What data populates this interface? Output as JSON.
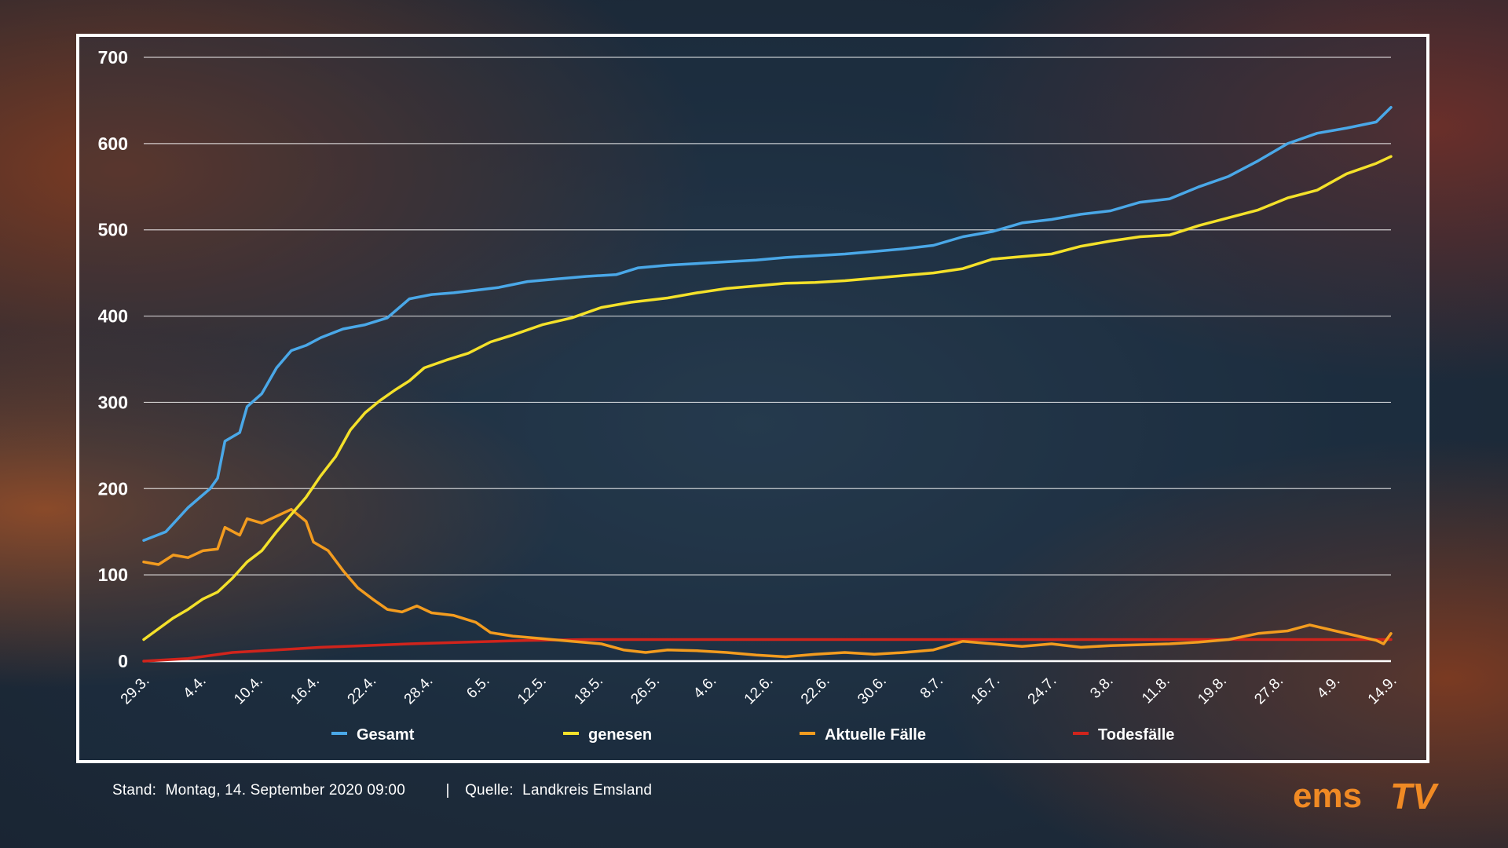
{
  "chart_data": {
    "type": "line",
    "ylim": [
      0,
      700
    ],
    "yticks": [
      0,
      100,
      200,
      300,
      400,
      500,
      600,
      700
    ],
    "x_tick_labels": [
      "29.3.",
      "4.4.",
      "10.4.",
      "16.4.",
      "22.4.",
      "28.4.",
      "6.5.",
      "12.5.",
      "18.5.",
      "26.5.",
      "4.6.",
      "12.6.",
      "22.6.",
      "30.6.",
      "8.7.",
      "16.7.",
      "24.7.",
      "3.8.",
      "11.8.",
      "19.8.",
      "27.8.",
      "4.9.",
      "14.9."
    ],
    "x_start": "2020-03-29",
    "x_end": "2020-09-14",
    "grid": true,
    "legend_position": "bottom",
    "series": [
      {
        "name": "Gesamt",
        "color": "#4aa8e8",
        "points": [
          [
            "2020-03-29",
            140
          ],
          [
            "2020-04-01",
            150
          ],
          [
            "2020-04-04",
            178
          ],
          [
            "2020-04-07",
            200
          ],
          [
            "2020-04-08",
            212
          ],
          [
            "2020-04-09",
            255
          ],
          [
            "2020-04-11",
            265
          ],
          [
            "2020-04-12",
            295
          ],
          [
            "2020-04-14",
            310
          ],
          [
            "2020-04-16",
            340
          ],
          [
            "2020-04-18",
            360
          ],
          [
            "2020-04-20",
            366
          ],
          [
            "2020-04-22",
            375
          ],
          [
            "2020-04-25",
            385
          ],
          [
            "2020-04-28",
            390
          ],
          [
            "2020-05-01",
            398
          ],
          [
            "2020-05-04",
            420
          ],
          [
            "2020-05-07",
            425
          ],
          [
            "2020-05-10",
            427
          ],
          [
            "2020-05-13",
            430
          ],
          [
            "2020-05-16",
            433
          ],
          [
            "2020-05-20",
            440
          ],
          [
            "2020-05-24",
            443
          ],
          [
            "2020-05-28",
            446
          ],
          [
            "2020-06-01",
            448
          ],
          [
            "2020-06-04",
            456
          ],
          [
            "2020-06-08",
            459
          ],
          [
            "2020-06-12",
            461
          ],
          [
            "2020-06-16",
            463
          ],
          [
            "2020-06-20",
            465
          ],
          [
            "2020-06-24",
            468
          ],
          [
            "2020-06-28",
            470
          ],
          [
            "2020-07-02",
            472
          ],
          [
            "2020-07-06",
            475
          ],
          [
            "2020-07-10",
            478
          ],
          [
            "2020-07-14",
            482
          ],
          [
            "2020-07-18",
            492
          ],
          [
            "2020-07-22",
            498
          ],
          [
            "2020-07-26",
            508
          ],
          [
            "2020-07-30",
            512
          ],
          [
            "2020-08-03",
            518
          ],
          [
            "2020-08-07",
            522
          ],
          [
            "2020-08-11",
            532
          ],
          [
            "2020-08-15",
            536
          ],
          [
            "2020-08-19",
            550
          ],
          [
            "2020-08-23",
            562
          ],
          [
            "2020-08-27",
            580
          ],
          [
            "2020-08-31",
            600
          ],
          [
            "2020-09-04",
            612
          ],
          [
            "2020-09-08",
            618
          ],
          [
            "2020-09-12",
            625
          ],
          [
            "2020-09-14",
            642
          ]
        ]
      },
      {
        "name": "genesen",
        "color": "#f4e12a",
        "points": [
          [
            "2020-03-29",
            25
          ],
          [
            "2020-04-02",
            50
          ],
          [
            "2020-04-04",
            60
          ],
          [
            "2020-04-06",
            72
          ],
          [
            "2020-04-08",
            80
          ],
          [
            "2020-04-10",
            96
          ],
          [
            "2020-04-12",
            115
          ],
          [
            "2020-04-14",
            128
          ],
          [
            "2020-04-16",
            150
          ],
          [
            "2020-04-18",
            170
          ],
          [
            "2020-04-20",
            190
          ],
          [
            "2020-04-22",
            215
          ],
          [
            "2020-04-24",
            237
          ],
          [
            "2020-04-26",
            268
          ],
          [
            "2020-04-28",
            288
          ],
          [
            "2020-04-30",
            302
          ],
          [
            "2020-05-02",
            314
          ],
          [
            "2020-05-04",
            325
          ],
          [
            "2020-05-06",
            340
          ],
          [
            "2020-05-09",
            349
          ],
          [
            "2020-05-12",
            357
          ],
          [
            "2020-05-15",
            370
          ],
          [
            "2020-05-18",
            378
          ],
          [
            "2020-05-22",
            390
          ],
          [
            "2020-05-26",
            398
          ],
          [
            "2020-05-30",
            410
          ],
          [
            "2020-06-03",
            416
          ],
          [
            "2020-06-08",
            421
          ],
          [
            "2020-06-12",
            427
          ],
          [
            "2020-06-16",
            432
          ],
          [
            "2020-06-20",
            435
          ],
          [
            "2020-06-24",
            438
          ],
          [
            "2020-06-28",
            439
          ],
          [
            "2020-07-02",
            441
          ],
          [
            "2020-07-06",
            444
          ],
          [
            "2020-07-10",
            447
          ],
          [
            "2020-07-14",
            450
          ],
          [
            "2020-07-18",
            455
          ],
          [
            "2020-07-22",
            466
          ],
          [
            "2020-07-26",
            469
          ],
          [
            "2020-07-30",
            472
          ],
          [
            "2020-08-03",
            481
          ],
          [
            "2020-08-07",
            487
          ],
          [
            "2020-08-11",
            492
          ],
          [
            "2020-08-15",
            494
          ],
          [
            "2020-08-19",
            505
          ],
          [
            "2020-08-23",
            514
          ],
          [
            "2020-08-27",
            523
          ],
          [
            "2020-08-31",
            537
          ],
          [
            "2020-09-04",
            546
          ],
          [
            "2020-09-08",
            565
          ],
          [
            "2020-09-12",
            577
          ],
          [
            "2020-09-14",
            585
          ]
        ]
      },
      {
        "name": "Aktuelle Fälle",
        "color": "#f39c1f",
        "points": [
          [
            "2020-03-29",
            115
          ],
          [
            "2020-03-31",
            112
          ],
          [
            "2020-04-02",
            123
          ],
          [
            "2020-04-04",
            120
          ],
          [
            "2020-04-06",
            128
          ],
          [
            "2020-04-08",
            130
          ],
          [
            "2020-04-09",
            155
          ],
          [
            "2020-04-11",
            146
          ],
          [
            "2020-04-12",
            165
          ],
          [
            "2020-04-14",
            160
          ],
          [
            "2020-04-16",
            168
          ],
          [
            "2020-04-18",
            176
          ],
          [
            "2020-04-20",
            162
          ],
          [
            "2020-04-21",
            138
          ],
          [
            "2020-04-23",
            128
          ],
          [
            "2020-04-25",
            105
          ],
          [
            "2020-04-27",
            85
          ],
          [
            "2020-04-29",
            72
          ],
          [
            "2020-05-01",
            60
          ],
          [
            "2020-05-03",
            57
          ],
          [
            "2020-05-05",
            64
          ],
          [
            "2020-05-07",
            56
          ],
          [
            "2020-05-10",
            53
          ],
          [
            "2020-05-13",
            45
          ],
          [
            "2020-05-15",
            33
          ],
          [
            "2020-05-18",
            29
          ],
          [
            "2020-05-22",
            26
          ],
          [
            "2020-05-26",
            23
          ],
          [
            "2020-05-30",
            20
          ],
          [
            "2020-06-02",
            13
          ],
          [
            "2020-06-05",
            10
          ],
          [
            "2020-06-08",
            13
          ],
          [
            "2020-06-12",
            12
          ],
          [
            "2020-06-16",
            10
          ],
          [
            "2020-06-20",
            7
          ],
          [
            "2020-06-24",
            5
          ],
          [
            "2020-06-28",
            8
          ],
          [
            "2020-07-02",
            10
          ],
          [
            "2020-07-06",
            8
          ],
          [
            "2020-07-10",
            10
          ],
          [
            "2020-07-14",
            13
          ],
          [
            "2020-07-18",
            23
          ],
          [
            "2020-07-22",
            20
          ],
          [
            "2020-07-26",
            17
          ],
          [
            "2020-07-30",
            20
          ],
          [
            "2020-08-03",
            16
          ],
          [
            "2020-08-07",
            18
          ],
          [
            "2020-08-11",
            19
          ],
          [
            "2020-08-15",
            20
          ],
          [
            "2020-08-19",
            22
          ],
          [
            "2020-08-23",
            25
          ],
          [
            "2020-08-27",
            32
          ],
          [
            "2020-08-31",
            35
          ],
          [
            "2020-09-03",
            42
          ],
          [
            "2020-09-06",
            36
          ],
          [
            "2020-09-09",
            30
          ],
          [
            "2020-09-12",
            24
          ],
          [
            "2020-09-13",
            20
          ],
          [
            "2020-09-14",
            32
          ]
        ]
      },
      {
        "name": "Todesfälle",
        "color": "#d0241c",
        "points": [
          [
            "2020-03-29",
            0
          ],
          [
            "2020-04-04",
            3
          ],
          [
            "2020-04-10",
            10
          ],
          [
            "2020-04-16",
            13
          ],
          [
            "2020-04-22",
            16
          ],
          [
            "2020-04-28",
            18
          ],
          [
            "2020-05-04",
            20
          ],
          [
            "2020-05-12",
            22
          ],
          [
            "2020-05-20",
            24
          ],
          [
            "2020-05-28",
            25
          ],
          [
            "2020-06-05",
            25
          ],
          [
            "2020-09-14",
            25
          ]
        ]
      }
    ]
  },
  "footer": {
    "stand_label": "Stand:",
    "stand_value": "Montag, 14. September 2020 09:00",
    "separator": "|",
    "source_label": "Quelle:",
    "source_value": "Landkreis Emsland"
  },
  "logo": {
    "text": "ems",
    "tv": "TV",
    "color": "#f08a24"
  }
}
